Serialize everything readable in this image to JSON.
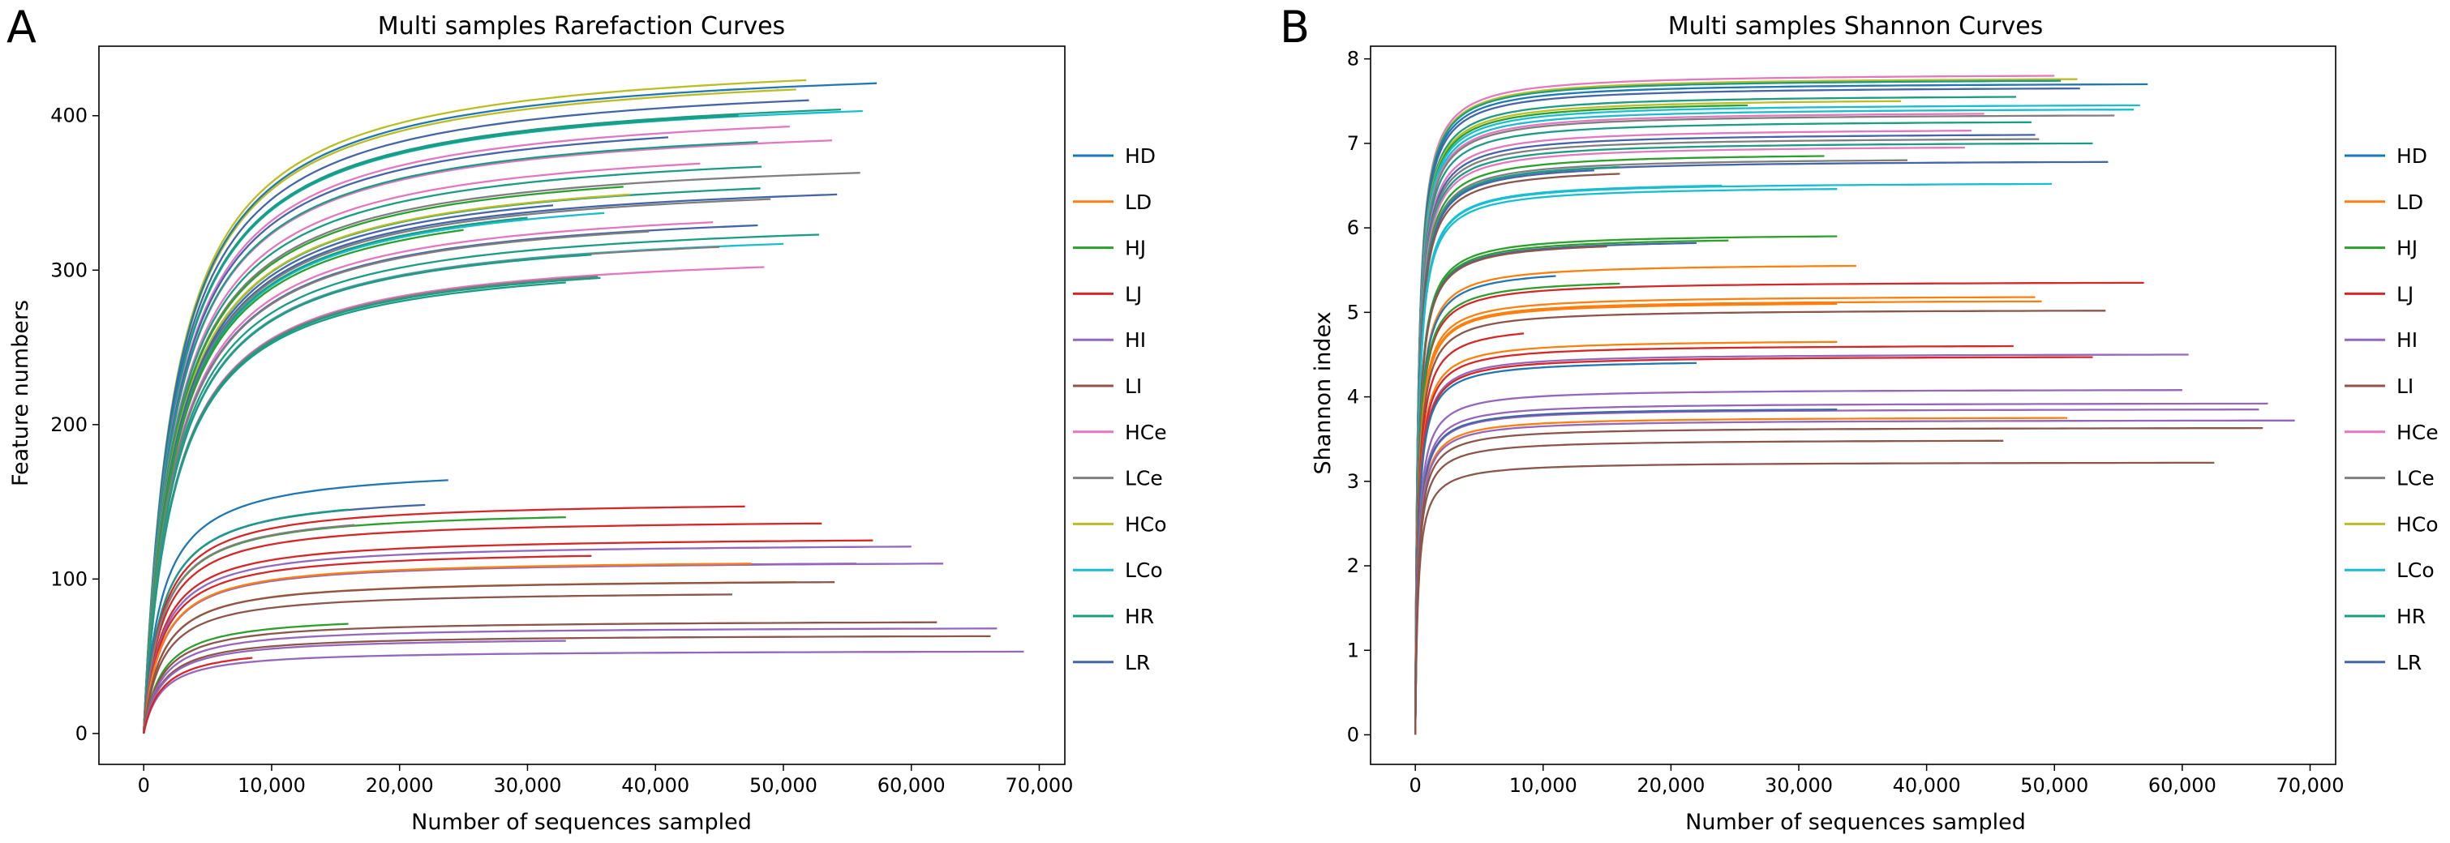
{
  "chart_data": [
    {
      "panel_label": "A",
      "type": "line",
      "title": "Multi samples Rarefaction Curves",
      "xlabel": "Number of sequences sampled",
      "ylabel": "Feature numbers",
      "xlim": [
        -3500,
        72000
      ],
      "ylim": [
        -20,
        445
      ],
      "xticks": [
        0,
        10000,
        20000,
        30000,
        40000,
        50000,
        60000,
        70000
      ],
      "xtick_labels": [
        "0",
        "10,000",
        "20,000",
        "30,000",
        "40,000",
        "50,000",
        "60,000",
        "70,000"
      ],
      "yticks": [
        0,
        100,
        200,
        300,
        400
      ],
      "ytick_labels": [
        "0",
        "100",
        "200",
        "300",
        "400"
      ],
      "legend": [
        "HD",
        "LD",
        "HJ",
        "LJ",
        "HI",
        "LI",
        "HCe",
        "LCe",
        "HCo",
        "LCo",
        "HR",
        "LR"
      ],
      "legend_position": "right-outside",
      "colors": {
        "HD": "#1f77b4",
        "LD": "#ff7f0e",
        "HJ": "#2ca02c",
        "LJ": "#d62728",
        "HI": "#9467bd",
        "LI": "#8c564b",
        "HCe": "#e377c2",
        "LCe": "#7f7f7f",
        "HCo": "#bcbd22",
        "LCo": "#17becf",
        "HR": "#1a9d84",
        "LR": "#4466a8"
      },
      "series": [
        {
          "name": "HCo",
          "max_x": 51800,
          "final_y": 423
        },
        {
          "name": "HCo",
          "max_x": 51000,
          "final_y": 417
        },
        {
          "name": "HD",
          "max_x": 57300,
          "final_y": 421
        },
        {
          "name": "LR",
          "max_x": 52000,
          "final_y": 410
        },
        {
          "name": "HR",
          "max_x": 54500,
          "final_y": 404
        },
        {
          "name": "LCo",
          "max_x": 56200,
          "final_y": 403
        },
        {
          "name": "HR",
          "max_x": 46500,
          "final_y": 400
        },
        {
          "name": "HCe",
          "max_x": 50500,
          "final_y": 393
        },
        {
          "name": "LR",
          "max_x": 41000,
          "final_y": 386
        },
        {
          "name": "HCe",
          "max_x": 53800,
          "final_y": 384
        },
        {
          "name": "HR",
          "max_x": 48000,
          "final_y": 383
        },
        {
          "name": "HCe",
          "max_x": 43500,
          "final_y": 369
        },
        {
          "name": "HR",
          "max_x": 48300,
          "final_y": 367
        },
        {
          "name": "LCe",
          "max_x": 56000,
          "final_y": 363
        },
        {
          "name": "HJ",
          "max_x": 37500,
          "final_y": 354
        },
        {
          "name": "HR",
          "max_x": 48200,
          "final_y": 353
        },
        {
          "name": "LR",
          "max_x": 54200,
          "final_y": 349
        },
        {
          "name": "HCo",
          "max_x": 38000,
          "final_y": 349
        },
        {
          "name": "LCe",
          "max_x": 49000,
          "final_y": 346
        },
        {
          "name": "LR",
          "max_x": 32000,
          "final_y": 342
        },
        {
          "name": "LCo",
          "max_x": 36000,
          "final_y": 337
        },
        {
          "name": "HR",
          "max_x": 30000,
          "final_y": 334
        },
        {
          "name": "HCe",
          "max_x": 44500,
          "final_y": 331
        },
        {
          "name": "LR",
          "max_x": 48000,
          "final_y": 329
        },
        {
          "name": "HR",
          "max_x": 52800,
          "final_y": 323
        },
        {
          "name": "HJ",
          "max_x": 25000,
          "final_y": 326
        },
        {
          "name": "LCe",
          "max_x": 39500,
          "final_y": 325
        },
        {
          "name": "LCo",
          "max_x": 50000,
          "final_y": 317
        },
        {
          "name": "LCe",
          "max_x": 45000,
          "final_y": 315
        },
        {
          "name": "HR",
          "max_x": 35000,
          "final_y": 310
        },
        {
          "name": "HCe",
          "max_x": 48500,
          "final_y": 302
        },
        {
          "name": "LCe",
          "max_x": 35500,
          "final_y": 296
        },
        {
          "name": "HR",
          "max_x": 33000,
          "final_y": 292
        },
        {
          "name": "HR",
          "max_x": 35700,
          "final_y": 295
        },
        {
          "name": "HD",
          "max_x": 23800,
          "final_y": 164
        },
        {
          "name": "LR",
          "max_x": 22000,
          "final_y": 148
        },
        {
          "name": "HJ",
          "max_x": 33000,
          "final_y": 140
        },
        {
          "name": "HR",
          "max_x": 16000,
          "final_y": 145
        },
        {
          "name": "LJ",
          "max_x": 47000,
          "final_y": 147
        },
        {
          "name": "LJ",
          "max_x": 53000,
          "final_y": 136
        },
        {
          "name": "LCe",
          "max_x": 16500,
          "final_y": 135
        },
        {
          "name": "LJ",
          "max_x": 57000,
          "final_y": 125
        },
        {
          "name": "HI",
          "max_x": 60000,
          "final_y": 121
        },
        {
          "name": "LJ",
          "max_x": 35000,
          "final_y": 115
        },
        {
          "name": "HI",
          "max_x": 55700,
          "final_y": 110
        },
        {
          "name": "HI",
          "max_x": 62500,
          "final_y": 110
        },
        {
          "name": "LD",
          "max_x": 47500,
          "final_y": 110
        },
        {
          "name": "LD",
          "max_x": 51000,
          "final_y": 98
        },
        {
          "name": "LI",
          "max_x": 54000,
          "final_y": 98
        },
        {
          "name": "LI",
          "max_x": 46000,
          "final_y": 90
        },
        {
          "name": "HJ",
          "max_x": 16000,
          "final_y": 71
        },
        {
          "name": "LI",
          "max_x": 62000,
          "final_y": 72
        },
        {
          "name": "HI",
          "max_x": 66700,
          "final_y": 68
        },
        {
          "name": "LI",
          "max_x": 66200,
          "final_y": 63
        },
        {
          "name": "HI",
          "max_x": 33000,
          "final_y": 60
        },
        {
          "name": "HI",
          "max_x": 68800,
          "final_y": 53
        },
        {
          "name": "LJ",
          "max_x": 8500,
          "final_y": 49
        }
      ]
    },
    {
      "panel_label": "B",
      "type": "line",
      "title": "Multi samples Shannon Curves",
      "xlabel": "Number of sequences sampled",
      "ylabel": "Shannon index",
      "xlim": [
        -3500,
        72000
      ],
      "ylim": [
        -0.35,
        8.15
      ],
      "xticks": [
        0,
        10000,
        20000,
        30000,
        40000,
        50000,
        60000,
        70000
      ],
      "xtick_labels": [
        "0",
        "10,000",
        "20,000",
        "30,000",
        "40,000",
        "50,000",
        "60,000",
        "70,000"
      ],
      "yticks": [
        0,
        1,
        2,
        3,
        4,
        5,
        6,
        7,
        8
      ],
      "ytick_labels": [
        "0",
        "1",
        "2",
        "3",
        "4",
        "5",
        "6",
        "7",
        "8"
      ],
      "legend": [
        "HD",
        "LD",
        "HJ",
        "LJ",
        "HI",
        "LI",
        "HCe",
        "LCe",
        "HCo",
        "LCo",
        "HR",
        "LR"
      ],
      "legend_position": "right-outside",
      "colors": {
        "HD": "#1f77b4",
        "LD": "#ff7f0e",
        "HJ": "#2ca02c",
        "LJ": "#d62728",
        "HI": "#9467bd",
        "LI": "#8c564b",
        "HCe": "#e377c2",
        "LCe": "#7f7f7f",
        "HCo": "#bcbd22",
        "LCo": "#17becf",
        "HR": "#1a9d84",
        "LR": "#4466a8"
      },
      "series": [
        {
          "name": "HCe",
          "max_x": 50000,
          "final_y": 7.8
        },
        {
          "name": "HCo",
          "max_x": 51800,
          "final_y": 7.76
        },
        {
          "name": "HR",
          "max_x": 50500,
          "final_y": 7.74
        },
        {
          "name": "HD",
          "max_x": 57300,
          "final_y": 7.7
        },
        {
          "name": "LR",
          "max_x": 52000,
          "final_y": 7.65
        },
        {
          "name": "HR",
          "max_x": 47000,
          "final_y": 7.55
        },
        {
          "name": "HCo",
          "max_x": 38000,
          "final_y": 7.5
        },
        {
          "name": "HJ",
          "max_x": 26000,
          "final_y": 7.45
        },
        {
          "name": "LCo",
          "max_x": 56700,
          "final_y": 7.45
        },
        {
          "name": "LCo",
          "max_x": 56200,
          "final_y": 7.4
        },
        {
          "name": "HCe",
          "max_x": 44500,
          "final_y": 7.35
        },
        {
          "name": "LCe",
          "max_x": 54700,
          "final_y": 7.33
        },
        {
          "name": "HR",
          "max_x": 48200,
          "final_y": 7.25
        },
        {
          "name": "HCe",
          "max_x": 43500,
          "final_y": 7.15
        },
        {
          "name": "LR",
          "max_x": 48500,
          "final_y": 7.1
        },
        {
          "name": "LCe",
          "max_x": 48800,
          "final_y": 7.05
        },
        {
          "name": "HR",
          "max_x": 53000,
          "final_y": 7.0
        },
        {
          "name": "HCe",
          "max_x": 43000,
          "final_y": 6.95
        },
        {
          "name": "HJ",
          "max_x": 32000,
          "final_y": 6.85
        },
        {
          "name": "LCe",
          "max_x": 38500,
          "final_y": 6.8
        },
        {
          "name": "LR",
          "max_x": 54200,
          "final_y": 6.78
        },
        {
          "name": "HR",
          "max_x": 16000,
          "final_y": 6.72
        },
        {
          "name": "LR",
          "max_x": 14000,
          "final_y": 6.68
        },
        {
          "name": "LI",
          "max_x": 16000,
          "final_y": 6.64
        },
        {
          "name": "LCo",
          "max_x": 24000,
          "final_y": 6.5
        },
        {
          "name": "LCo",
          "max_x": 49800,
          "final_y": 6.52
        },
        {
          "name": "LCo",
          "max_x": 33000,
          "final_y": 6.46
        },
        {
          "name": "HJ",
          "max_x": 33000,
          "final_y": 5.9
        },
        {
          "name": "HJ",
          "max_x": 24500,
          "final_y": 5.85
        },
        {
          "name": "LR",
          "max_x": 22000,
          "final_y": 5.82
        },
        {
          "name": "LI",
          "max_x": 15000,
          "final_y": 5.78
        },
        {
          "name": "LD",
          "max_x": 34500,
          "final_y": 5.55
        },
        {
          "name": "HD",
          "max_x": 11000,
          "final_y": 5.43
        },
        {
          "name": "LJ",
          "max_x": 57000,
          "final_y": 5.35
        },
        {
          "name": "HJ",
          "max_x": 16000,
          "final_y": 5.34
        },
        {
          "name": "LD",
          "max_x": 48500,
          "final_y": 5.18
        },
        {
          "name": "LD",
          "max_x": 49000,
          "final_y": 5.13
        },
        {
          "name": "LD",
          "max_x": 33000,
          "final_y": 5.1
        },
        {
          "name": "LI",
          "max_x": 54000,
          "final_y": 5.02
        },
        {
          "name": "LJ",
          "max_x": 8500,
          "final_y": 4.75
        },
        {
          "name": "LD",
          "max_x": 33000,
          "final_y": 4.65
        },
        {
          "name": "LJ",
          "max_x": 46800,
          "final_y": 4.6
        },
        {
          "name": "HI",
          "max_x": 60500,
          "final_y": 4.5
        },
        {
          "name": "LJ",
          "max_x": 53000,
          "final_y": 4.47
        },
        {
          "name": "HD",
          "max_x": 22000,
          "final_y": 4.4
        },
        {
          "name": "HI",
          "max_x": 60000,
          "final_y": 4.08
        },
        {
          "name": "HI",
          "max_x": 66700,
          "final_y": 3.92
        },
        {
          "name": "HI",
          "max_x": 66000,
          "final_y": 3.85
        },
        {
          "name": "LR",
          "max_x": 33000,
          "final_y": 3.85
        },
        {
          "name": "LD",
          "max_x": 51000,
          "final_y": 3.75
        },
        {
          "name": "HI",
          "max_x": 68800,
          "final_y": 3.72
        },
        {
          "name": "LI",
          "max_x": 66300,
          "final_y": 3.63
        },
        {
          "name": "LI",
          "max_x": 46000,
          "final_y": 3.48
        },
        {
          "name": "LI",
          "max_x": 62500,
          "final_y": 3.22
        }
      ]
    }
  ]
}
